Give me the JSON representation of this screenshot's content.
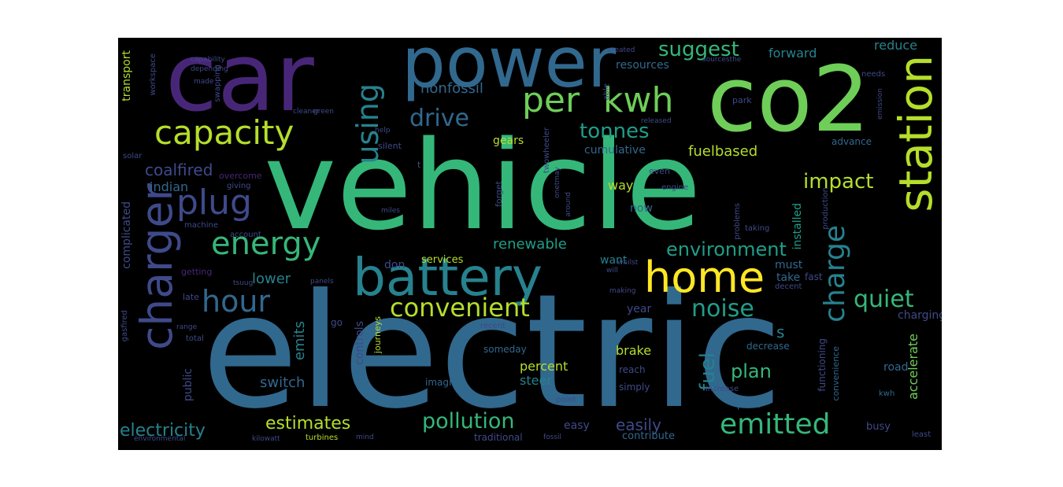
{
  "palette": {
    "purple": "#482677",
    "indigo": "#3f4a8a",
    "blue": "#31688e",
    "teal": "#26828e",
    "seagreen": "#1f9e89",
    "green": "#35b779",
    "lime": "#6ece58",
    "yellow": "#b5de2b",
    "bright": "#fde725"
  },
  "words": {
    "electric": "electric",
    "vehicle": "vehicle",
    "car": "car",
    "co2": "co2",
    "power": "power",
    "battery": "battery",
    "station": "station",
    "home": "home",
    "charger": "charger",
    "per": "per",
    "kwh": "kwh",
    "capacity": "capacity",
    "plug": "plug",
    "energy": "energy",
    "hour": "hour",
    "convenient": "convenient",
    "charge": "charge",
    "emitted": "emitted",
    "pollution": "pollution",
    "estimates": "estimates",
    "electricity": "electricity",
    "noise": "noise",
    "quiet": "quiet",
    "environment": "environment",
    "impact": "impact",
    "using": "using",
    "drive": "drive",
    "tonnes": "tonnes",
    "suggest": "suggest",
    "resources": "resources",
    "forward": "forward",
    "reduce": "reduce",
    "nonfossil": "nonfossil",
    "coalfired": "coalfired",
    "indian": "indian",
    "fuelbased": "fuelbased",
    "cumulative": "cumulative",
    "gears": "gears",
    "advance": "advance",
    "way": "way",
    "now": "now",
    "renewable": "renewable",
    "want": "want",
    "must": "must",
    "take": "take",
    "lower": "lower",
    "emits": "emits",
    "plan": "plan",
    "fuel": "fuel",
    "s": "s",
    "easily": "easily",
    "easy": "easy",
    "percent": "percent",
    "steer": "steer",
    "brake": "brake",
    "switch": "switch",
    "year": "year",
    "don": "don",
    "services": "services",
    "installed": "installed",
    "fast": "fast",
    "accelerate": "accelerate",
    "road": "road",
    "charging": "charging",
    "transport": "transport",
    "complicated": "complicated",
    "public": "public",
    "controls": "controls",
    "journeys": "journeys",
    "imagine": "imagine",
    "someday": "someday",
    "contribute": "contribute",
    "traditional": "traditional",
    "busy": "busy",
    "peak": "peak",
    "functioning": "functioning",
    "convenience": "convenience",
    "decrease": "decrease",
    "reach": "reach",
    "simply": "simply",
    "increase": "increase",
    "kwh_small": "kwh",
    "least": "least",
    "go": "go",
    "late": "late",
    "getting": "getting",
    "machine": "machine",
    "account": "account",
    "overcome": "overcome",
    "giving": "giving",
    "solar": "solar",
    "green": "green",
    "help": "help",
    "silent": "silent",
    "able": "able",
    "forget": "forget",
    "twowheeler": "twowheeler",
    "onetmay": "onetmay",
    "around": "around",
    "engine": "engine",
    "even": "even",
    "released": "released",
    "park": "park",
    "problems": "problems",
    "taking": "taking",
    "production": "production",
    "needs": "needs",
    "emission": "emission",
    "swapping": "swapping",
    "capability": "capability",
    "depending": "depending",
    "made": "made",
    "workspace": "workspace",
    "sourcesthe": "sourcesthe",
    "whilst": "whilst",
    "will": "will",
    "making": "making",
    "decent": "decent",
    "recent": "recent",
    "point": "point",
    "total": "total",
    "range": "range",
    "gasfired": "gasfired",
    "environmental": "environmental",
    "kilowatt": "kilowatt",
    "turbines": "turbines",
    "fossil": "fossil",
    "mind": "mind",
    "miles": "miles",
    "panels": "panels",
    "tsuug": "tsuug",
    "cleaner": "cleaner",
    "created": "created",
    "t": "t"
  }
}
